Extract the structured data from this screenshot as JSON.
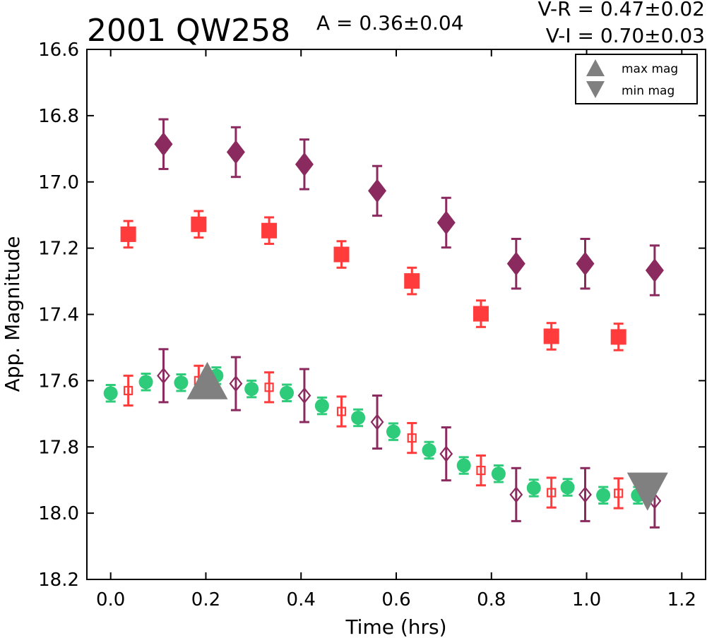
{
  "chart_data": {
    "type": "scatter",
    "title": "2001 QW258",
    "amplitude_text": "A  = 0.36±0.04",
    "color_text": [
      "V-R = 0.47±0.02",
      "V-I  = 0.70±0.03"
    ],
    "xlabel": "Time (hrs)",
    "ylabel": "App. Magnitude",
    "xlim": [
      -0.05,
      1.25
    ],
    "ylim": [
      18.2,
      16.6
    ],
    "y_inverted": true,
    "xticks": [
      "0.0",
      "0.2",
      "0.4",
      "0.6",
      "0.8",
      "1.0",
      "1.2"
    ],
    "yticks": [
      "16.6",
      "16.8",
      "17.0",
      "17.2",
      "17.4",
      "17.6",
      "17.8",
      "18.0",
      "18.2"
    ],
    "grid": false,
    "legend": {
      "position": "top-right",
      "entries": [
        {
          "label": "max mag",
          "marker": "triangle-up",
          "color": "#808080"
        },
        {
          "label": "min mag",
          "marker": "triangle-down",
          "color": "#808080"
        }
      ]
    },
    "series": [
      {
        "marker": "diamond",
        "filled": true,
        "color": "#8b2a5e",
        "x": [
          0.111,
          0.263,
          0.407,
          0.56,
          0.705,
          0.852,
          0.997,
          1.143
        ],
        "y": [
          16.886,
          16.91,
          16.947,
          17.027,
          17.123,
          17.247,
          17.247,
          17.267
        ],
        "err": [
          0.075,
          0.075,
          0.075,
          0.075,
          0.075,
          0.075,
          0.075,
          0.075
        ]
      },
      {
        "marker": "square",
        "filled": true,
        "color": "#ff3b3b",
        "x": [
          0.037,
          0.185,
          0.333,
          0.485,
          0.633,
          0.778,
          0.926,
          1.067
        ],
        "y": [
          17.158,
          17.128,
          17.147,
          17.219,
          17.299,
          17.398,
          17.466,
          17.468
        ],
        "err": [
          0.04,
          0.04,
          0.04,
          0.04,
          0.04,
          0.04,
          0.04,
          0.04
        ]
      },
      {
        "marker": "diamond",
        "filled": false,
        "color": "#8b2a5e",
        "x": [
          0.111,
          0.263,
          0.407,
          0.56,
          0.705,
          0.852,
          0.997,
          1.143
        ],
        "y": [
          17.585,
          17.609,
          17.645,
          17.725,
          17.821,
          17.944,
          17.944,
          17.963
        ],
        "err": [
          0.08,
          0.08,
          0.08,
          0.08,
          0.08,
          0.08,
          0.08,
          0.08
        ]
      },
      {
        "marker": "square",
        "filled": false,
        "color": "#ff3b3b",
        "x": [
          0.037,
          0.185,
          0.333,
          0.485,
          0.633,
          0.778,
          0.926,
          1.067
        ],
        "y": [
          17.63,
          17.6,
          17.62,
          17.693,
          17.773,
          17.871,
          17.938,
          17.94
        ],
        "err": [
          0.045,
          0.045,
          0.045,
          0.045,
          0.045,
          0.045,
          0.045,
          0.045
        ]
      },
      {
        "marker": "circle",
        "filled": true,
        "color": "#2ecc7a",
        "x": [
          0.0,
          0.074,
          0.148,
          0.222,
          0.296,
          0.37,
          0.444,
          0.52,
          0.594,
          0.669,
          0.742,
          0.815,
          0.889,
          0.96,
          1.035,
          1.108
        ],
        "y": [
          17.638,
          17.604,
          17.606,
          17.585,
          17.625,
          17.637,
          17.676,
          17.712,
          17.754,
          17.81,
          17.856,
          17.881,
          17.924,
          17.922,
          17.946,
          17.946
        ],
        "err": [
          0.025,
          0.025,
          0.025,
          0.025,
          0.025,
          0.025,
          0.025,
          0.025,
          0.025,
          0.025,
          0.025,
          0.025,
          0.025,
          0.025,
          0.025,
          0.025
        ]
      }
    ],
    "markers": [
      {
        "type": "max",
        "x": 0.203,
        "y": 17.605,
        "color": "#808080"
      },
      {
        "type": "min",
        "x": 1.128,
        "y": 17.935,
        "color": "#808080"
      }
    ]
  }
}
